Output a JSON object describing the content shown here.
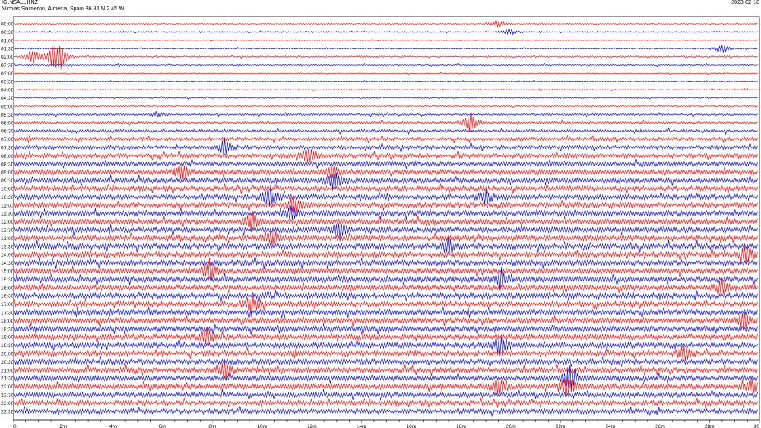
{
  "header": {
    "station_code": "IG.NSAL..HNZ",
    "station_location": "Nicolas Salmeron, Almeria, Spain  36.83 N 2.45 W",
    "date": "2023-02-18"
  },
  "chart_data": {
    "type": "line",
    "title": "IG.NSAL..HNZ",
    "subtitle": "Nicolas Salmeron, Almeria, Spain  36.83 N 2.45 W",
    "xlabel": "",
    "ylabel": "",
    "xlim": [
      0,
      30
    ],
    "x_unit": "minutes",
    "x_ticks": [
      "0",
      "2m",
      "4m",
      "6m",
      "8m",
      "10m",
      "12m",
      "14m",
      "16m",
      "18m",
      "20m",
      "22m",
      "24m",
      "26m",
      "28m",
      "30"
    ],
    "row_labels": [
      "00:00",
      "00:30",
      "01:00",
      "01:30",
      "02:00",
      "02:30",
      "03:00",
      "03:30",
      "04:00",
      "04:30",
      "05:00",
      "05:30",
      "06:00",
      "06:30",
      "07:00",
      "07:30",
      "08:00",
      "08:30",
      "09:00",
      "09:30",
      "10:00",
      "10:30",
      "11:00",
      "11:30",
      "12:00",
      "12:30",
      "13:00",
      "13:30",
      "14:00",
      "14:30",
      "15:00",
      "15:30",
      "16:00",
      "16:30",
      "17:00",
      "17:30",
      "18:00",
      "18:30",
      "19:00",
      "19:30",
      "20:00",
      "20:30",
      "21:00",
      "21:30",
      "22:00",
      "22:30",
      "23:00",
      "23:30"
    ],
    "row_colors": [
      "#ee1111",
      "#1111cc"
    ],
    "row_amplitude": [
      0.06,
      0.08,
      0.06,
      0.08,
      0.1,
      0.08,
      0.06,
      0.06,
      0.07,
      0.08,
      0.08,
      0.12,
      0.14,
      0.18,
      0.22,
      0.24,
      0.26,
      0.28,
      0.3,
      0.32,
      0.3,
      0.32,
      0.32,
      0.34,
      0.34,
      0.34,
      0.34,
      0.36,
      0.34,
      0.34,
      0.34,
      0.36,
      0.34,
      0.34,
      0.32,
      0.34,
      0.34,
      0.34,
      0.34,
      0.34,
      0.32,
      0.32,
      0.32,
      0.32,
      0.34,
      0.32,
      0.3,
      0.3
    ],
    "events": [
      {
        "row": "00:00",
        "minute": 19.5,
        "amplitude": 0.6
      },
      {
        "row": "00:30",
        "minute": 20.0,
        "amplitude": 0.5
      },
      {
        "row": "01:30",
        "minute": 28.5,
        "amplitude": 0.7
      },
      {
        "row": "02:00",
        "minute": 0.8,
        "amplitude": 1.2
      },
      {
        "row": "02:00",
        "minute": 1.6,
        "amplitude": 1.6
      },
      {
        "row": "02:00",
        "minute": 1.9,
        "amplitude": 1.4
      },
      {
        "row": "05:30",
        "minute": 5.8,
        "amplitude": 0.4
      },
      {
        "row": "06:00",
        "minute": 18.4,
        "amplitude": 1.5
      },
      {
        "row": "07:30",
        "minute": 8.5,
        "amplitude": 1.2
      },
      {
        "row": "08:00",
        "minute": 11.9,
        "amplitude": 1.3
      },
      {
        "row": "09:00",
        "minute": 6.8,
        "amplitude": 1.2
      },
      {
        "row": "09:00",
        "minute": 12.8,
        "amplitude": 1.0
      },
      {
        "row": "09:30",
        "minute": 12.9,
        "amplitude": 1.4
      },
      {
        "row": "10:30",
        "minute": 10.3,
        "amplitude": 1.5
      },
      {
        "row": "10:30",
        "minute": 19.0,
        "amplitude": 1.0
      },
      {
        "row": "11:00",
        "minute": 11.3,
        "amplitude": 1.4
      },
      {
        "row": "11:30",
        "minute": 11.2,
        "amplitude": 1.0
      },
      {
        "row": "12:00",
        "minute": 9.6,
        "amplitude": 1.3
      },
      {
        "row": "12:30",
        "minute": 13.1,
        "amplitude": 1.2
      },
      {
        "row": "13:00",
        "minute": 10.4,
        "amplitude": 1.3
      },
      {
        "row": "13:30",
        "minute": 17.5,
        "amplitude": 1.1
      },
      {
        "row": "14:00",
        "minute": 29.5,
        "amplitude": 1.2
      },
      {
        "row": "15:00",
        "minute": 7.9,
        "amplitude": 1.4
      },
      {
        "row": "15:30",
        "minute": 19.6,
        "amplitude": 1.3
      },
      {
        "row": "16:00",
        "minute": 28.5,
        "amplitude": 1.3
      },
      {
        "row": "17:00",
        "minute": 9.6,
        "amplitude": 1.3
      },
      {
        "row": "18:00",
        "minute": 29.4,
        "amplitude": 1.2
      },
      {
        "row": "19:00",
        "minute": 7.8,
        "amplitude": 1.4
      },
      {
        "row": "19:30",
        "minute": 19.6,
        "amplitude": 1.6
      },
      {
        "row": "20:00",
        "minute": 27.0,
        "amplitude": 1.4
      },
      {
        "row": "21:00",
        "minute": 8.5,
        "amplitude": 1.5
      },
      {
        "row": "21:30",
        "minute": 22.4,
        "amplitude": 1.8
      },
      {
        "row": "22:00",
        "minute": 19.5,
        "amplitude": 1.2
      },
      {
        "row": "22:00",
        "minute": 22.3,
        "amplitude": 1.6
      },
      {
        "row": "22:00",
        "minute": 29.7,
        "amplitude": 1.0
      }
    ],
    "grid": false,
    "legend": "none"
  }
}
